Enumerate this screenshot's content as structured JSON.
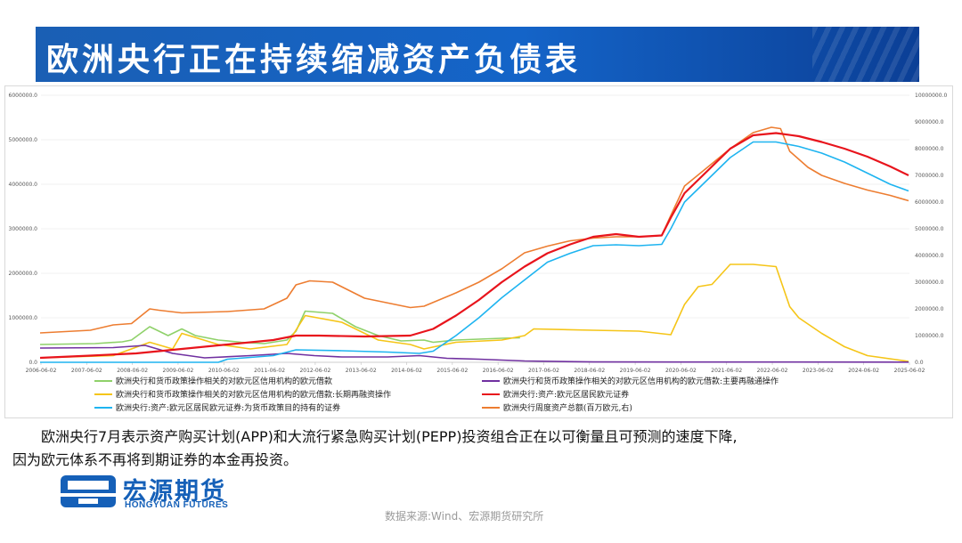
{
  "title": "欧洲央行正在持续缩减资产负债表",
  "caption": {
    "line1": "欧洲央行7月表示资产购买计划(APP)和大流行紧急购买计划(PEPP)投资组合正在以可衡量且可预测的速度下降,",
    "line2": "因为欧元体系不再将到期证券的本金再投资。"
  },
  "logo": {
    "cn": "宏源期货",
    "en": "HONGYUAN FUTURES"
  },
  "source": "数据来源:Wind、宏源期货研究所",
  "colors": {
    "title_bg": "#1a5fb4",
    "series": [
      "#8fd16a",
      "#7030a0",
      "#f5c518",
      "#e8141c",
      "#1eb4f0",
      "#ed7d31"
    ]
  },
  "chart_data": {
    "type": "line",
    "title": "",
    "y_left": {
      "ylim": [
        0,
        6000000
      ],
      "ticks": [
        "0.0",
        "1000000.0",
        "2000000.0",
        "3000000.0",
        "4000000.0",
        "5000000.0",
        "6000000.0"
      ]
    },
    "y_right": {
      "ylim": [
        0,
        10000000
      ],
      "ticks": [
        "0.0",
        "1000000.0",
        "2000000.0",
        "3000000.0",
        "4000000.0",
        "5000000.0",
        "6000000.0",
        "7000000.0",
        "8000000.0",
        "9000000.0",
        "10000000.0"
      ]
    },
    "x_ticks": [
      "2006-06-02",
      "2007-06-02",
      "2008-06-02",
      "2009-06-02",
      "2010-06-02",
      "2011-06-02",
      "2012-06-02",
      "2013-06-02",
      "2014-06-02",
      "2015-06-02",
      "2016-06-02",
      "2017-06-02",
      "2018-06-02",
      "2019-06-02",
      "2020-06-02",
      "2021-06-02",
      "2022-06-02",
      "2023-06-02",
      "2024-06-02",
      "2025-06-02"
    ],
    "x_range": [
      "2006-06-02",
      "2025-06-02"
    ],
    "grid": true,
    "legend_position": "bottom",
    "series": [
      {
        "name": "欧洲央行和货币政策操作相关的对欧元区信用机构的欧元借款",
        "axis": "left",
        "x": [
          2006.4,
          2007.6,
          2008.2,
          2008.4,
          2008.8,
          2009.2,
          2009.5,
          2009.8,
          2010.3,
          2010.8,
          2011.3,
          2011.8,
          2012.0,
          2012.2,
          2012.8,
          2013.3,
          2013.8,
          2014.3,
          2014.8,
          2015.0,
          2015.5,
          2016.0,
          2016.5,
          2016.9
        ],
        "values": [
          400000,
          420000,
          460000,
          500000,
          800000,
          600000,
          750000,
          600000,
          500000,
          450000,
          420000,
          500000,
          700000,
          1150000,
          1100000,
          800000,
          600000,
          480000,
          500000,
          450000,
          500000,
          520000,
          540000,
          550000
        ]
      },
      {
        "name": "欧洲央行和货币政策操作相关的对欧元区信用机构的欧元借款:主要再融通操作",
        "axis": "left",
        "x": [
          2006.4,
          2008.0,
          2008.7,
          2009.3,
          2010.0,
          2011.0,
          2011.8,
          2012.4,
          2013.0,
          2014.0,
          2014.7,
          2015.3,
          2016.0,
          2017.0,
          2018.5,
          2025.4
        ],
        "values": [
          320000,
          330000,
          380000,
          200000,
          100000,
          150000,
          200000,
          150000,
          120000,
          120000,
          150000,
          90000,
          70000,
          30000,
          8000,
          5000
        ]
      },
      {
        "name": "欧洲央行和货币政策操作相关的对欧元区信用机构的欧元借款:长期再融资操作",
        "axis": "left",
        "x": [
          2006.4,
          2008.0,
          2008.8,
          2009.3,
          2009.5,
          2010.3,
          2011.0,
          2011.8,
          2012.2,
          2013.0,
          2013.8,
          2014.5,
          2014.8,
          2015.5,
          2016.5,
          2017.0,
          2017.2,
          2018.5,
          2019.5,
          2020.2,
          2020.5,
          2020.8,
          2021.1,
          2021.5,
          2022.0,
          2022.5,
          2022.8,
          2023.0,
          2023.5,
          2024.0,
          2024.5,
          2025.4
        ],
        "values": [
          100000,
          150000,
          450000,
          300000,
          650000,
          400000,
          300000,
          400000,
          1050000,
          900000,
          500000,
          400000,
          300000,
          450000,
          500000,
          600000,
          750000,
          720000,
          700000,
          620000,
          1300000,
          1700000,
          1750000,
          2200000,
          2200000,
          2150000,
          1250000,
          1000000,
          650000,
          350000,
          150000,
          20000
        ]
      },
      {
        "name": "欧洲央行:资产:欧元区居民欧元证券",
        "axis": "left",
        "x": [
          2006.4,
          2007.5,
          2008.5,
          2009.5,
          2010.5,
          2011.5,
          2012.0,
          2012.5,
          2013.5,
          2014.5,
          2015.0,
          2015.5,
          2016.0,
          2016.5,
          2017.0,
          2017.5,
          2018.0,
          2018.5,
          2019.0,
          2019.5,
          2020.0,
          2020.2,
          2020.5,
          2021.0,
          2021.5,
          2022.0,
          2022.5,
          2023.0,
          2023.5,
          2024.0,
          2024.5,
          2025.0,
          2025.4
        ],
        "values": [
          100000,
          150000,
          200000,
          300000,
          400000,
          500000,
          600000,
          600000,
          580000,
          600000,
          750000,
          1050000,
          1400000,
          1800000,
          2150000,
          2450000,
          2650000,
          2820000,
          2880000,
          2820000,
          2850000,
          3250000,
          3800000,
          4300000,
          4800000,
          5100000,
          5150000,
          5080000,
          4950000,
          4800000,
          4620000,
          4400000,
          4200000
        ]
      },
      {
        "name": "欧洲央行:资产:欧元区居民欧元证券:为货币政策目的持有的证券",
        "axis": "left",
        "x": [
          2006.4,
          2010.3,
          2010.5,
          2011.5,
          2012.0,
          2013.0,
          2014.0,
          2014.7,
          2015.0,
          2015.5,
          2016.0,
          2016.5,
          2017.0,
          2017.5,
          2018.0,
          2018.5,
          2019.0,
          2019.5,
          2020.0,
          2020.2,
          2020.5,
          2021.0,
          2021.5,
          2022.0,
          2022.5,
          2023.0,
          2023.5,
          2024.0,
          2024.5,
          2025.0,
          2025.4
        ],
        "values": [
          0,
          0,
          70000,
          150000,
          280000,
          260000,
          230000,
          200000,
          250000,
          600000,
          1000000,
          1450000,
          1850000,
          2250000,
          2450000,
          2620000,
          2640000,
          2620000,
          2650000,
          3000000,
          3600000,
          4100000,
          4600000,
          4950000,
          4950000,
          4850000,
          4700000,
          4500000,
          4250000,
          4000000,
          3850000
        ]
      },
      {
        "name": "欧洲央行周度资产总额(百万欧元,右)",
        "axis": "right",
        "x": [
          2006.4,
          2007.5,
          2008.0,
          2008.4,
          2008.8,
          2009.0,
          2009.5,
          2010.5,
          2011.3,
          2011.8,
          2012.0,
          2012.3,
          2012.8,
          2013.5,
          2014.5,
          2014.8,
          2015.5,
          2016.0,
          2016.5,
          2017.0,
          2017.5,
          2018.0,
          2018.5,
          2019.0,
          2019.5,
          2020.0,
          2020.2,
          2020.5,
          2021.0,
          2021.5,
          2022.0,
          2022.4,
          2022.6,
          2022.8,
          2023.2,
          2023.5,
          2024.0,
          2024.5,
          2025.0,
          2025.4
        ],
        "values": [
          1100000,
          1200000,
          1400000,
          1450000,
          2000000,
          1950000,
          1850000,
          1900000,
          2000000,
          2400000,
          2900000,
          3050000,
          3000000,
          2400000,
          2050000,
          2100000,
          2600000,
          3000000,
          3500000,
          4100000,
          4350000,
          4550000,
          4650000,
          4700000,
          4700000,
          4750000,
          5500000,
          6600000,
          7300000,
          8000000,
          8600000,
          8800000,
          8750000,
          7900000,
          7300000,
          7000000,
          6700000,
          6450000,
          6250000,
          6050000
        ]
      }
    ]
  }
}
